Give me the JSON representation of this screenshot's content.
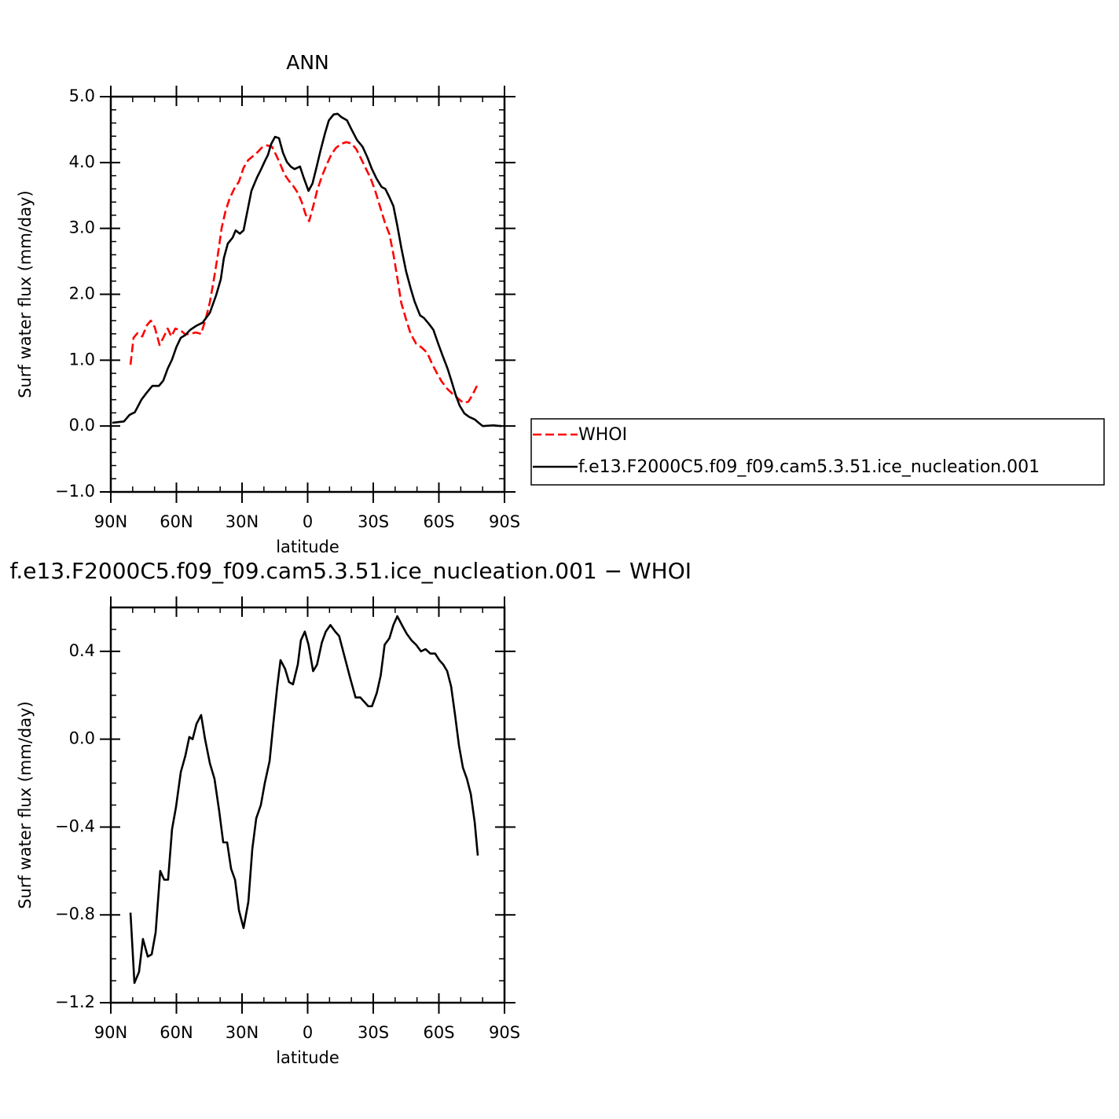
{
  "chart_data": [
    {
      "type": "line",
      "title": "ANN",
      "xlabel": "latitude",
      "ylabel": "Surf water flux (mm/day)",
      "xlim": [
        90,
        -90
      ],
      "xticks": [
        {
          "value": 90,
          "label": "90N"
        },
        {
          "value": 60,
          "label": "60N"
        },
        {
          "value": 30,
          "label": "30N"
        },
        0,
        {
          "value": -30,
          "label": "30S"
        },
        {
          "value": -60,
          "label": "60S"
        },
        {
          "value": -90,
          "label": "90S"
        }
      ],
      "ylim": [
        -1,
        5
      ],
      "yticks": [
        {
          "value": -1,
          "label": "−1.0"
        },
        {
          "value": 0,
          "label": "0.0"
        },
        {
          "value": 1,
          "label": "1.0"
        },
        {
          "value": 2,
          "label": "2.0"
        },
        {
          "value": 3,
          "label": "3.0"
        },
        {
          "value": 4,
          "label": "4.0"
        },
        {
          "value": 5,
          "label": "5.0"
        }
      ],
      "legend": "right",
      "series": [
        {
          "name": "WHOI",
          "color": "#ff0000",
          "line_style": "dashed",
          "x": [
            81,
            79.6,
            77.8,
            75.6,
            73.5,
            71.7,
            69.9,
            67.7,
            66,
            64,
            62.3,
            60.5,
            58,
            55.9,
            53.7,
            51.2,
            48.7,
            46.5,
            44.7,
            42.9,
            41.1,
            39.3,
            37.5,
            35.7,
            33.6,
            31.4,
            29.3,
            27.1,
            24.9,
            22.8,
            20.6,
            18.5,
            16.3,
            14.5,
            12.7,
            10.6,
            8.5,
            6.7,
            4.5,
            2.7,
            0.9,
            -0.7,
            -2.5,
            -4.3,
            -6.5,
            -8.6,
            -10.8,
            -12.9,
            -15.1,
            -17.6,
            -20.1,
            -22.3,
            -24.4,
            -26.6,
            -28.8,
            -30.9,
            -33.1,
            -35.3,
            -37.4,
            -39.2,
            -41,
            -42.8,
            -45,
            -47.1,
            -49.6,
            -52.2,
            -54.7,
            -56.8,
            -59,
            -61.2,
            -63.7,
            -66.2,
            -68.7,
            -71.2,
            -73.5,
            -75.3,
            -77.4
          ],
          "values": [
            0.93,
            1.34,
            1.41,
            1.36,
            1.53,
            1.6,
            1.5,
            1.23,
            1.34,
            1.48,
            1.36,
            1.48,
            1.45,
            1.39,
            1.4,
            1.42,
            1.4,
            1.64,
            1.88,
            2.22,
            2.59,
            3.01,
            3.27,
            3.45,
            3.6,
            3.71,
            3.92,
            4.04,
            4.1,
            4.16,
            4.24,
            4.26,
            4.24,
            4.12,
            3.99,
            3.82,
            3.72,
            3.65,
            3.54,
            3.4,
            3.21,
            3.11,
            3.33,
            3.57,
            3.79,
            3.96,
            4.12,
            4.22,
            4.28,
            4.31,
            4.29,
            4.2,
            4.06,
            3.91,
            3.76,
            3.57,
            3.33,
            3.09,
            2.91,
            2.61,
            2.25,
            1.87,
            1.62,
            1.4,
            1.25,
            1.19,
            1.11,
            0.95,
            0.81,
            0.68,
            0.57,
            0.49,
            0.42,
            0.35,
            0.37,
            0.47,
            0.61
          ]
        },
        {
          "name": "f.e13.F2000C5.f09_f09.cam5.3.51.ice_nucleation.001",
          "color": "#000000",
          "line_style": "solid",
          "x": [
            89.3,
            84,
            81.4,
            79,
            76,
            73.5,
            71,
            68,
            66,
            64,
            62,
            60,
            58,
            56,
            53.7,
            51,
            48,
            44.7,
            41.8,
            39.7,
            38.3,
            36.5,
            34.3,
            32.9,
            31,
            29.3,
            27.5,
            25.7,
            23.2,
            21.4,
            19.6,
            18.1,
            16.7,
            14.9,
            13.1,
            11.3,
            9.5,
            7.8,
            6,
            3.5,
            1.8,
            -0.4,
            -2.2,
            -4,
            -5.8,
            -7.9,
            -9.7,
            -11.9,
            -13.7,
            -15.4,
            -18,
            -20.1,
            -22.6,
            -25.1,
            -27.3,
            -29.4,
            -31.6,
            -33.8,
            -35.5,
            -37.3,
            -39.2,
            -41,
            -42.8,
            -45,
            -47.1,
            -48.9,
            -51.4,
            -53.2,
            -55.7,
            -57.5,
            -59.7,
            -61.8,
            -64,
            -65.8,
            -67.7,
            -69.5,
            -71.7,
            -73.8,
            -76.4,
            -77.8,
            -80,
            -85,
            -88.6
          ],
          "values": [
            0.05,
            0.07,
            0.17,
            0.21,
            0.4,
            0.51,
            0.61,
            0.61,
            0.69,
            0.87,
            1.01,
            1.2,
            1.34,
            1.38,
            1.46,
            1.52,
            1.57,
            1.72,
            1.99,
            2.23,
            2.55,
            2.77,
            2.86,
            2.97,
            2.92,
            2.97,
            3.27,
            3.57,
            3.77,
            3.89,
            4.02,
            4.12,
            4.28,
            4.39,
            4.37,
            4.15,
            4.01,
            3.94,
            3.9,
            3.94,
            3.77,
            3.57,
            3.68,
            3.92,
            4.17,
            4.44,
            4.64,
            4.73,
            4.74,
            4.69,
            4.64,
            4.5,
            4.34,
            4.24,
            4.08,
            3.9,
            3.75,
            3.63,
            3.6,
            3.48,
            3.34,
            3.04,
            2.71,
            2.35,
            2.09,
            1.89,
            1.68,
            1.64,
            1.54,
            1.46,
            1.25,
            1.06,
            0.87,
            0.68,
            0.47,
            0.31,
            0.19,
            0.14,
            0.1,
            0.06,
            0.0,
            0.01,
            0.0
          ]
        }
      ]
    },
    {
      "type": "line",
      "title": "f.e13.F2000C5.f09_f09.cam5.3.51.ice_nucleation.001 − WHOI",
      "xlabel": "latitude",
      "ylabel": "Surf water flux (mm/day)",
      "xlim": [
        90,
        -90
      ],
      "xticks": [
        {
          "value": 90,
          "label": "90N"
        },
        {
          "value": 60,
          "label": "60N"
        },
        {
          "value": 30,
          "label": "30N"
        },
        0,
        {
          "value": -30,
          "label": "30S"
        },
        {
          "value": -60,
          "label": "60S"
        },
        {
          "value": -90,
          "label": "90S"
        }
      ],
      "ylim": [
        -1.2,
        0.6
      ],
      "yticks": [
        {
          "value": -1.2,
          "label": "−1.2"
        },
        {
          "value": -0.8,
          "label": "−0.8"
        },
        {
          "value": -0.4,
          "label": "−0.4"
        },
        {
          "value": 0,
          "label": "0.0"
        },
        {
          "value": 0.4,
          "label": "0.4"
        }
      ],
      "color": "#000000",
      "x": [
        81,
        79.2,
        77.1,
        75.3,
        73.1,
        71.3,
        69.5,
        67.4,
        65.6,
        63.8,
        62,
        60.2,
        58,
        55.9,
        54.1,
        52.6,
        50.8,
        48.7,
        46.9,
        44.7,
        42.6,
        40.4,
        38.6,
        36.8,
        35,
        33.2,
        31.4,
        29.3,
        27.1,
        25.3,
        23.5,
        21.4,
        19.6,
        17.4,
        15.7,
        13.9,
        12.4,
        10.3,
        8.5,
        6.7,
        4.5,
        3.1,
        1.3,
        -0.4,
        -2.5,
        -4.3,
        -6.5,
        -8.3,
        -10.4,
        -12.6,
        -14.4,
        -16.5,
        -19.4,
        -21.9,
        -24.1,
        -25.9,
        -27.7,
        -29.4,
        -31.6,
        -33.4,
        -35.2,
        -37.4,
        -39.2,
        -41,
        -43.1,
        -45.3,
        -47.5,
        -49.6,
        -51.8,
        -53.9,
        -56.1,
        -58.3,
        -60.2,
        -62,
        -63.8,
        -65.6,
        -67.4,
        -69.2,
        -71,
        -72.8,
        -74.6,
        -76.4,
        -77.8
      ],
      "values": [
        -0.79,
        -1.11,
        -1.06,
        -0.91,
        -0.99,
        -0.98,
        -0.88,
        -0.6,
        -0.64,
        -0.64,
        -0.41,
        -0.31,
        -0.15,
        -0.075,
        0.01,
        0.0,
        0.07,
        0.11,
        0.0,
        -0.11,
        -0.18,
        -0.33,
        -0.47,
        -0.47,
        -0.59,
        -0.64,
        -0.78,
        -0.86,
        -0.74,
        -0.5,
        -0.36,
        -0.3,
        -0.2,
        -0.1,
        0.07,
        0.24,
        0.36,
        0.32,
        0.26,
        0.25,
        0.34,
        0.45,
        0.49,
        0.43,
        0.31,
        0.34,
        0.44,
        0.49,
        0.52,
        0.49,
        0.47,
        0.39,
        0.28,
        0.19,
        0.19,
        0.17,
        0.15,
        0.15,
        0.21,
        0.29,
        0.43,
        0.46,
        0.52,
        0.56,
        0.52,
        0.48,
        0.45,
        0.43,
        0.4,
        0.41,
        0.39,
        0.39,
        0.36,
        0.34,
        0.31,
        0.24,
        0.11,
        -0.03,
        -0.13,
        -0.18,
        -0.25,
        -0.38,
        -0.53
      ]
    }
  ]
}
